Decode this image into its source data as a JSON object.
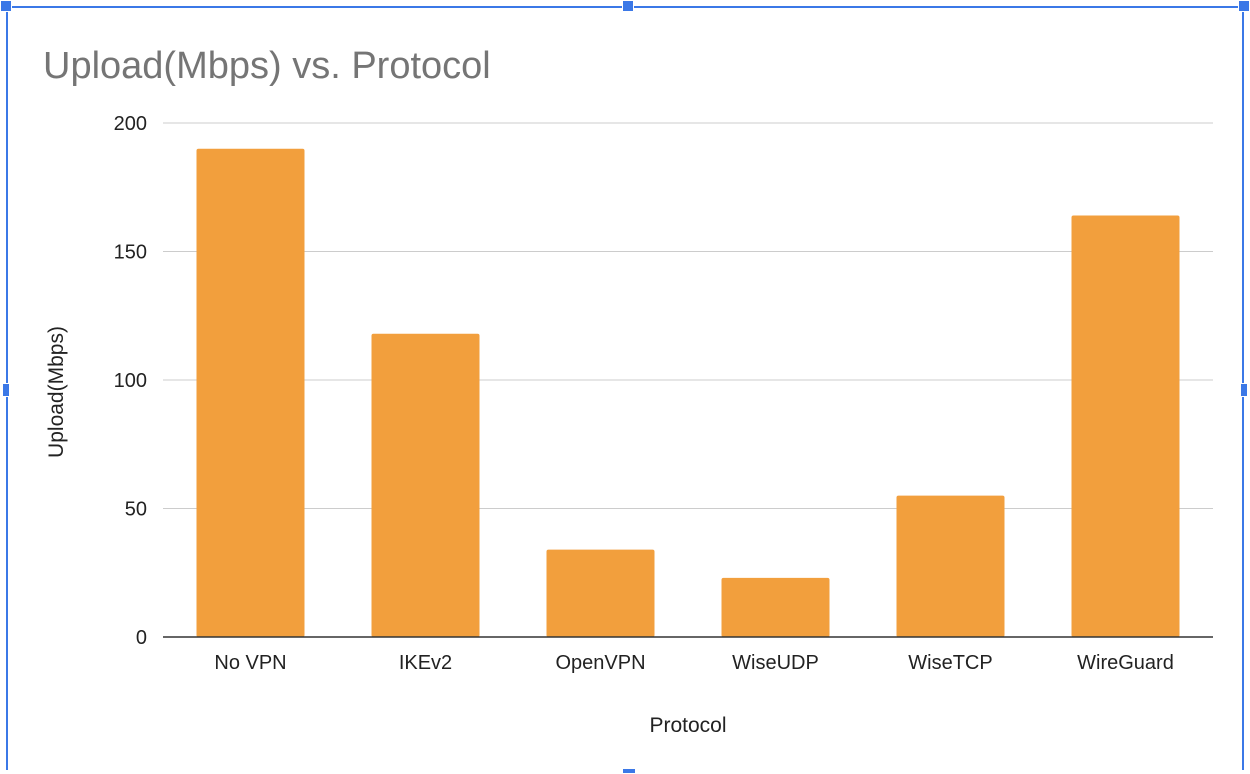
{
  "chart_data": {
    "type": "bar",
    "title": "Upload(Mbps) vs. Protocol",
    "xlabel": "Protocol",
    "ylabel": "Upload(Mbps)",
    "categories": [
      "No VPN",
      "IKEv2",
      "OpenVPN",
      "WiseUDP",
      "WiseTCP",
      "WireGuard"
    ],
    "values": [
      190,
      118,
      34,
      23,
      55,
      164
    ],
    "ylim": [
      0,
      200
    ],
    "yticks": [
      "0",
      "50",
      "100",
      "150",
      "200"
    ],
    "grid": true,
    "legend": "none",
    "bar_color": "#f29f3d",
    "grid_color": "#cccccc",
    "selection_color": "#3b78e7"
  }
}
